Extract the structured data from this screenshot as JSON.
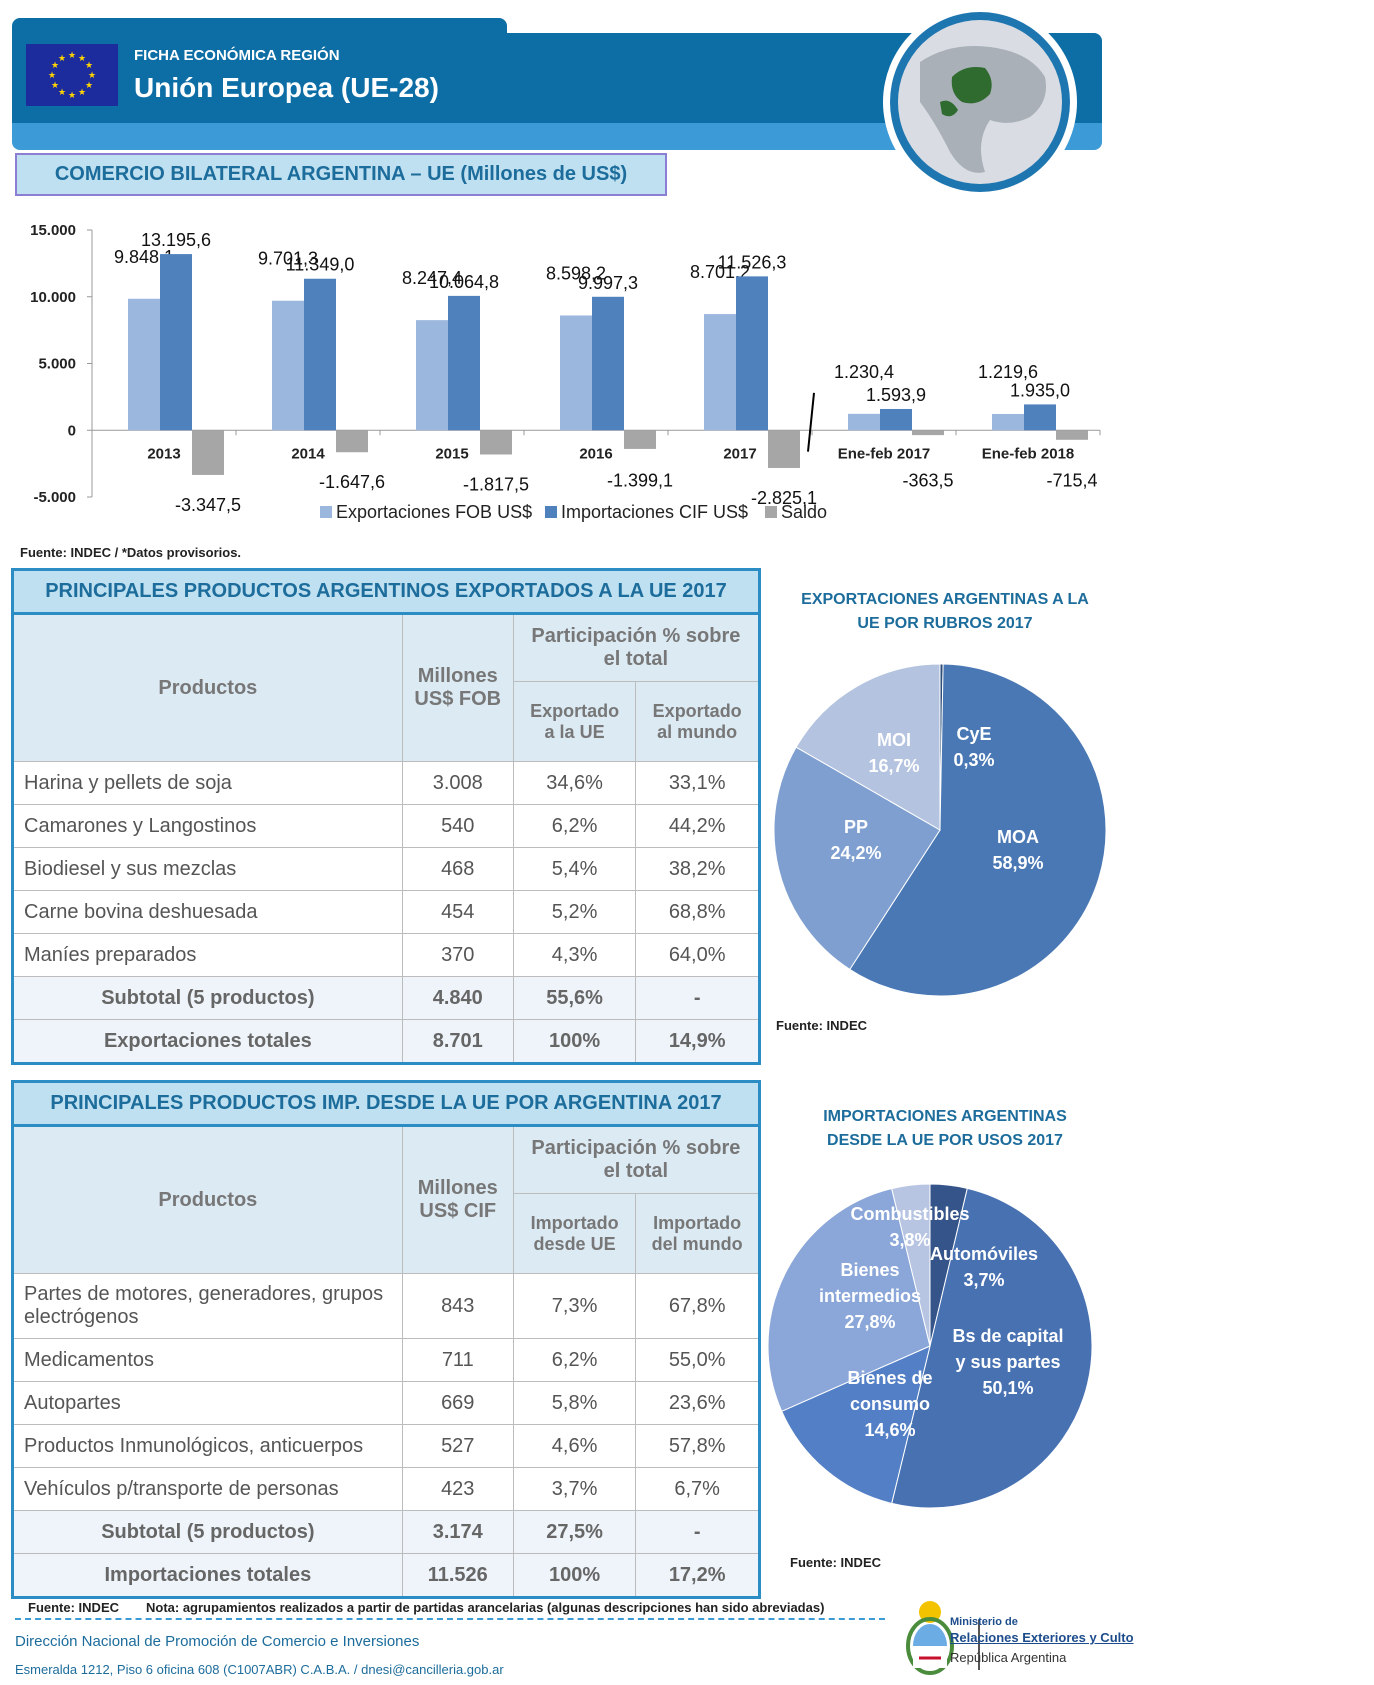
{
  "header": {
    "subtitle": "FICHA ECONÓMICA REGIÓN",
    "title": "Unión Europea (UE-28)"
  },
  "section_title": "COMERCIO BILATERAL ARGENTINA – UE  (Millones de US$)",
  "chart_note": "Fuente: INDEC / *Datos provisorios.",
  "chart_data": [
    {
      "type": "bar",
      "categories": [
        "2013",
        "2014",
        "2015",
        "2016",
        "2017",
        "Ene-feb 2017",
        "Ene-feb 2018"
      ],
      "series": [
        {
          "name": "Exportaciones FOB US$",
          "values": [
            9848.1,
            9701.3,
            8247.4,
            8598.2,
            8701.2,
            1230.4,
            1219.6
          ],
          "labels": [
            "9.848,1",
            "9.701,3",
            "8.247,4",
            "8.598,2",
            "8.701,2",
            "1.230,4",
            "1.219,6"
          ],
          "color": "#9bb7dd"
        },
        {
          "name": "Importaciones CIF US$",
          "values": [
            13195.6,
            11349.0,
            10064.8,
            9997.3,
            11526.3,
            1593.9,
            1935.0
          ],
          "labels": [
            "13.195,6",
            "11.349,0",
            "10.064,8",
            "9.997,3",
            "11.526,3",
            "1.593,9",
            "1.935,0"
          ],
          "color": "#4f81bd"
        },
        {
          "name": "Saldo",
          "values": [
            -3347.5,
            -1647.6,
            -1817.5,
            -1399.1,
            -2825.1,
            -363.5,
            -715.4
          ],
          "labels": [
            "-3.347,5",
            "-1.647,6",
            "-1.817,5",
            "-1.399,1",
            "-2.825,1",
            "-363,5",
            "-715,4"
          ],
          "color": "#a6a6a6"
        }
      ],
      "ylim": [
        -5000,
        15000
      ],
      "yticks": [
        "-5.000",
        "0",
        "5.000",
        "10.000",
        "15.000"
      ],
      "ytick_values": [
        -5000,
        0,
        5000,
        10000,
        15000
      ],
      "legend_position": "bottom"
    },
    {
      "type": "pie",
      "title": "EXPORTACIONES ARGENTINAS A LA UE POR RUBROS 2017",
      "slices": [
        {
          "label": "CyE",
          "value": 0.3,
          "text": "0,3%",
          "color": "#2e4d78"
        },
        {
          "label": "MOA",
          "value": 58.9,
          "text": "58,9%",
          "color": "#4a78b4"
        },
        {
          "label": "PP",
          "value": 24.2,
          "text": "24,2%",
          "color": "#7e9fd0"
        },
        {
          "label": "MOI",
          "value": 16.7,
          "text": "16,7%",
          "color": "#b4c3df"
        }
      ]
    },
    {
      "type": "pie",
      "title": "IMPORTACIONES ARGENTINAS DESDE LA UE POR USOS 2017",
      "slices": [
        {
          "label": "Automóviles",
          "value": 3.7,
          "text": "3,7%",
          "color": "#35558a"
        },
        {
          "label": "Bs de capital y sus partes",
          "value": 50.1,
          "text": "50,1%",
          "color": "#4871b2"
        },
        {
          "label": "Bienes de consumo",
          "value": 14.6,
          "text": "14,6%",
          "color": "#527fc5"
        },
        {
          "label": "Bienes intermedios",
          "value": 27.8,
          "text": "27,8%",
          "color": "#8ba6d8"
        },
        {
          "label": "Combustibles",
          "value": 3.8,
          "text": "3,8%",
          "color": "#b8c5e2"
        }
      ]
    }
  ],
  "exports_table": {
    "title": "PRINCIPALES PRODUCTOS ARGENTINOS EXPORTADOS A LA UE 2017",
    "col_products": "Productos",
    "col_millones": "Millones US$ FOB",
    "col_part": "Participación % sobre el total",
    "col_sub1": "Exportado a la UE",
    "col_sub2": "Exportado al mundo",
    "rows": [
      [
        "Harina y pellets de soja",
        "3.008",
        "34,6%",
        "33,1%"
      ],
      [
        "Camarones y Langostinos",
        "540",
        "6,2%",
        "44,2%"
      ],
      [
        "Biodiesel y sus mezclas",
        "468",
        "5,4%",
        "38,2%"
      ],
      [
        "Carne bovina deshuesada",
        "454",
        "5,2%",
        "68,8%"
      ],
      [
        "Maníes preparados",
        "370",
        "4,3%",
        "64,0%"
      ]
    ],
    "totals": [
      [
        "Subtotal (5 productos)",
        "4.840",
        "55,6%",
        "-"
      ],
      [
        "Exportaciones totales",
        "8.701",
        "100%",
        "14,9%"
      ]
    ]
  },
  "imports_table": {
    "title": "PRINCIPALES PRODUCTOS IMP. DESDE LA UE POR ARGENTINA 2017",
    "col_products": "Productos",
    "col_millones": "Millones US$ CIF",
    "col_part": "Participación % sobre el total",
    "col_sub1": "Importado desde UE",
    "col_sub2": "Importado del mundo",
    "rows": [
      [
        "Partes de motores, generadores, grupos electrógenos",
        "843",
        "7,3%",
        "67,8%"
      ],
      [
        "Medicamentos",
        "711",
        "6,2%",
        "55,0%"
      ],
      [
        "Autopartes",
        "669",
        "5,8%",
        "23,6%"
      ],
      [
        "Productos Inmunológicos, anticuerpos",
        "527",
        "4,6%",
        "57,8%"
      ],
      [
        "Vehículos p/transporte de personas",
        "423",
        "3,7%",
        "6,7%"
      ]
    ],
    "totals": [
      [
        "Subtotal (5 productos)",
        "3.174",
        "27,5%",
        "-"
      ],
      [
        "Importaciones totales",
        "11.526",
        "100%",
        "17,2%"
      ]
    ]
  },
  "pie1_source": "Fuente: INDEC",
  "pie2_source": "Fuente: INDEC",
  "bottom_note_source": "Fuente: INDEC",
  "bottom_note": "Nota: agrupamientos realizados a partir de partidas arancelarias (algunas descripciones han sido abreviadas)",
  "footer": {
    "line1": "Dirección Nacional de Promoción de Comercio e Inversiones",
    "line2": "Esmeralda 1212,  Piso 6 oficina 608 (C1007ABR) C.A.B.A. / dnesi@cancilleria.gob.ar",
    "ministry_line1": "Ministerio de",
    "ministry_line2": "Relaciones Exteriores y Culto",
    "ministry_line3": "República Argentina"
  },
  "icons": [
    "eu-flag-icon",
    "globe-icon",
    "coat-of-arms-icon"
  ]
}
